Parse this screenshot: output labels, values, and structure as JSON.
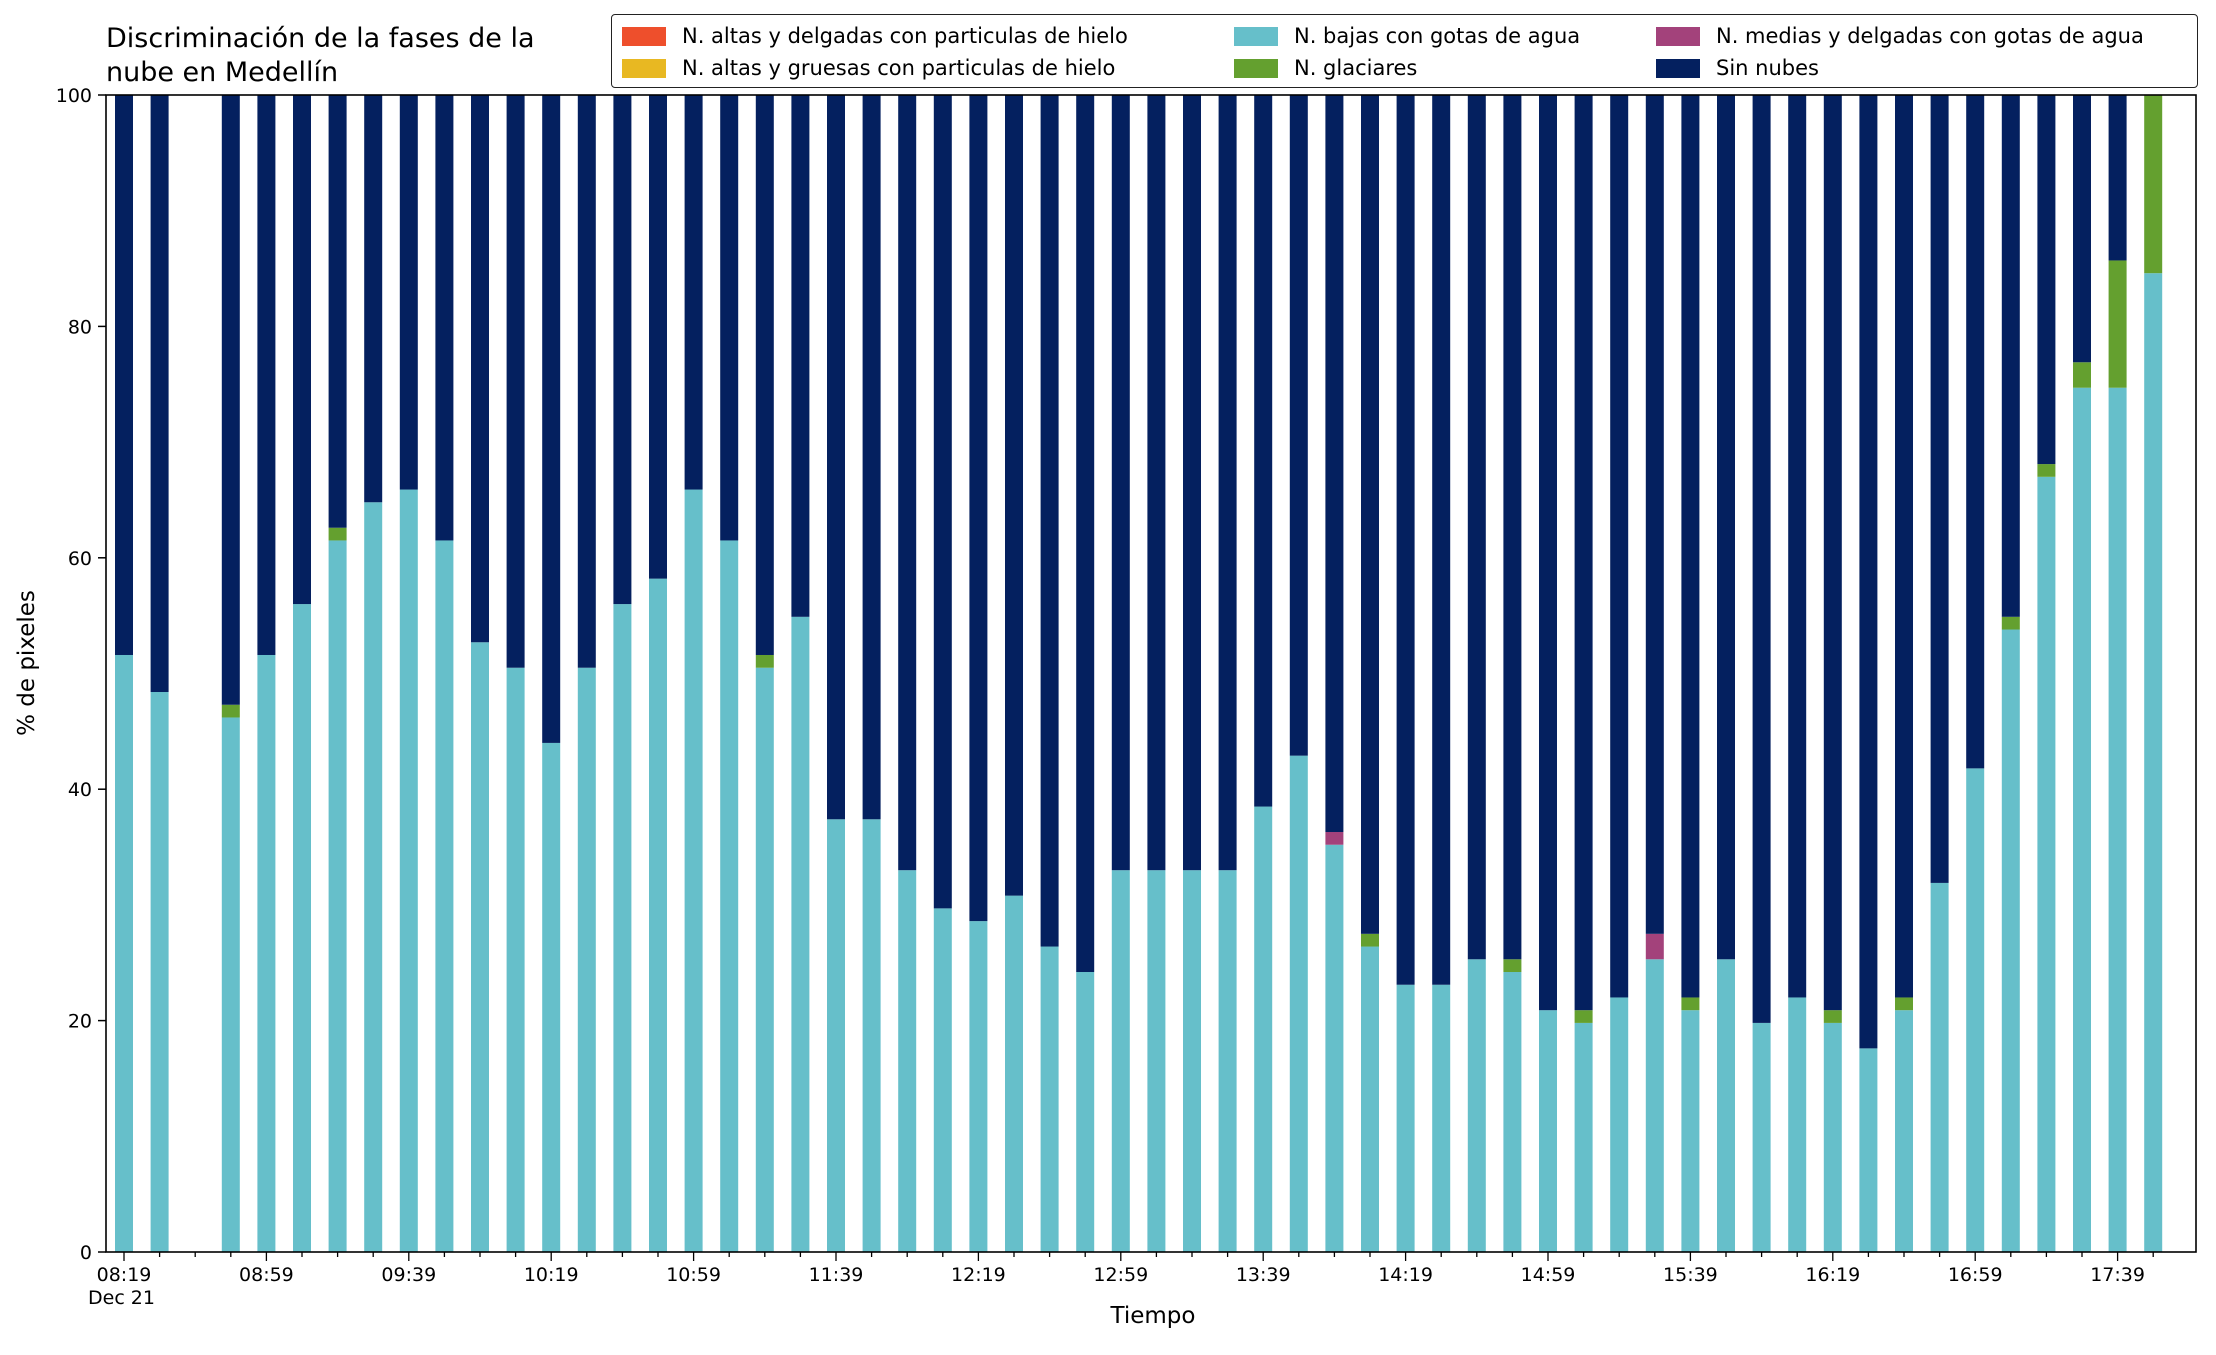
{
  "chart_data": {
    "type": "bar",
    "stacked": true,
    "title": "Discriminación de la fases de la\nnube en Medellín",
    "xlabel": "Tiempo",
    "ylabel": "% de pixeles",
    "ylim": [
      0,
      100
    ],
    "yticks": [
      0,
      20,
      40,
      60,
      80,
      100
    ],
    "x_date_label": "Dec 21",
    "x_tick_labels": [
      "08:19",
      "08:59",
      "09:39",
      "10:19",
      "10:59",
      "11:39",
      "12:19",
      "12:59",
      "13:39",
      "14:19",
      "14:59",
      "15:39",
      "16:19",
      "16:59",
      "17:39"
    ],
    "categories": [
      "08:19",
      "08:29",
      "08:39",
      "08:49",
      "08:59",
      "09:09",
      "09:19",
      "09:29",
      "09:39",
      "09:49",
      "09:59",
      "10:09",
      "10:19",
      "10:29",
      "10:39",
      "10:49",
      "10:59",
      "11:09",
      "11:19",
      "11:29",
      "11:39",
      "11:49",
      "11:59",
      "12:09",
      "12:19",
      "12:29",
      "12:39",
      "12:49",
      "12:59",
      "13:09",
      "13:19",
      "13:29",
      "13:39",
      "13:49",
      "13:59",
      "14:09",
      "14:19",
      "14:29",
      "14:39",
      "14:49",
      "14:59",
      "15:09",
      "15:19",
      "15:29",
      "15:39",
      "15:49",
      "15:59",
      "16:09",
      "16:19",
      "16:29",
      "16:39",
      "16:49",
      "16:59",
      "17:09",
      "17:19",
      "17:29",
      "17:39",
      "17:49"
    ],
    "legend_position": "top-right",
    "legend_columns": 3,
    "series": [
      {
        "name": "N. altas y delgadas con particulas de hielo",
        "color": "#ee4f2c",
        "values": [
          0,
          0,
          null,
          0,
          0,
          0,
          0,
          0,
          0,
          0,
          0,
          0,
          0,
          0,
          0,
          0,
          0,
          0,
          0,
          0,
          0,
          0,
          0,
          0,
          0,
          0,
          0,
          0,
          0,
          0,
          0,
          0,
          0,
          0,
          0,
          0,
          0,
          0,
          0,
          0,
          0,
          0,
          0,
          0,
          0,
          0,
          0,
          0,
          0,
          0,
          0,
          0,
          0,
          0,
          0,
          0,
          0,
          0
        ]
      },
      {
        "name": "N. altas y gruesas con particulas de hielo",
        "color": "#e8b822",
        "values": [
          0,
          0,
          null,
          0,
          0,
          0,
          0,
          0,
          0,
          0,
          0,
          0,
          0,
          0,
          0,
          0,
          0,
          0,
          0,
          0,
          0,
          0,
          0,
          0,
          0,
          0,
          0,
          0,
          0,
          0,
          0,
          0,
          0,
          0,
          0,
          0,
          0,
          0,
          0,
          0,
          0,
          0,
          0,
          0,
          0,
          0,
          0,
          0,
          0,
          0,
          0,
          0,
          0,
          0,
          0,
          0,
          0,
          0
        ]
      },
      {
        "name": "N. bajas con gotas de agua",
        "color": "#66bfca",
        "values": [
          51.6,
          48.4,
          null,
          46.2,
          51.6,
          56.0,
          61.5,
          64.8,
          65.9,
          61.5,
          52.7,
          50.5,
          44.0,
          50.5,
          56.0,
          58.2,
          65.9,
          61.5,
          50.5,
          54.9,
          37.4,
          37.4,
          33.0,
          29.7,
          28.6,
          30.8,
          26.4,
          24.2,
          33.0,
          33.0,
          33.0,
          33.0,
          38.5,
          42.9,
          35.2,
          26.4,
          23.1,
          23.1,
          25.3,
          24.2,
          20.9,
          19.8,
          22.0,
          25.3,
          20.9,
          25.3,
          19.8,
          22.0,
          19.8,
          17.6,
          20.9,
          31.9,
          41.8,
          53.8,
          67.0,
          74.7,
          74.7,
          84.6
        ]
      },
      {
        "name": "N. glaciares",
        "color": "#64a02f",
        "values": [
          0,
          0,
          null,
          1.1,
          0,
          0,
          1.1,
          0,
          0,
          0,
          0,
          0,
          0,
          0,
          0,
          0,
          0,
          0,
          1.1,
          0,
          0,
          0,
          0,
          0,
          0,
          0,
          0,
          0,
          0,
          0,
          0,
          0,
          0,
          0,
          0,
          1.1,
          0,
          0,
          0,
          1.1,
          0,
          1.1,
          0,
          0,
          1.1,
          0,
          0,
          0,
          1.1,
          0,
          1.1,
          0,
          0,
          1.1,
          1.1,
          2.2,
          11.0,
          15.4
        ]
      },
      {
        "name": "N. medias y delgadas con gotas de agua",
        "color": "#a3427b",
        "values": [
          0,
          0,
          null,
          0,
          0,
          0,
          0,
          0,
          0,
          0,
          0,
          0,
          0,
          0,
          0,
          0,
          0,
          0,
          0,
          0,
          0,
          0,
          0,
          0,
          0,
          0,
          0,
          0,
          0,
          0,
          0,
          0,
          0,
          0,
          1.1,
          0,
          0,
          0,
          0,
          0,
          0,
          0,
          0,
          2.2,
          0,
          0,
          0,
          0,
          0,
          0,
          0,
          0,
          0,
          0,
          0,
          0,
          0,
          0
        ]
      },
      {
        "name": "Sin nubes",
        "color": "#04205f",
        "values": [
          48.4,
          51.6,
          null,
          52.7,
          48.4,
          44.0,
          37.4,
          35.2,
          34.1,
          38.5,
          47.3,
          49.5,
          56.0,
          49.5,
          44.0,
          41.8,
          34.1,
          38.5,
          48.4,
          45.1,
          62.6,
          62.6,
          67.0,
          70.3,
          71.4,
          69.2,
          73.6,
          75.8,
          67.0,
          67.0,
          67.0,
          67.0,
          61.5,
          57.1,
          63.7,
          72.5,
          76.9,
          76.9,
          74.7,
          74.7,
          79.1,
          79.1,
          78.0,
          72.5,
          78.0,
          74.7,
          80.2,
          78.0,
          79.1,
          82.4,
          78.0,
          68.1,
          58.2,
          45.1,
          31.9,
          23.1,
          14.3,
          0
        ]
      }
    ]
  }
}
